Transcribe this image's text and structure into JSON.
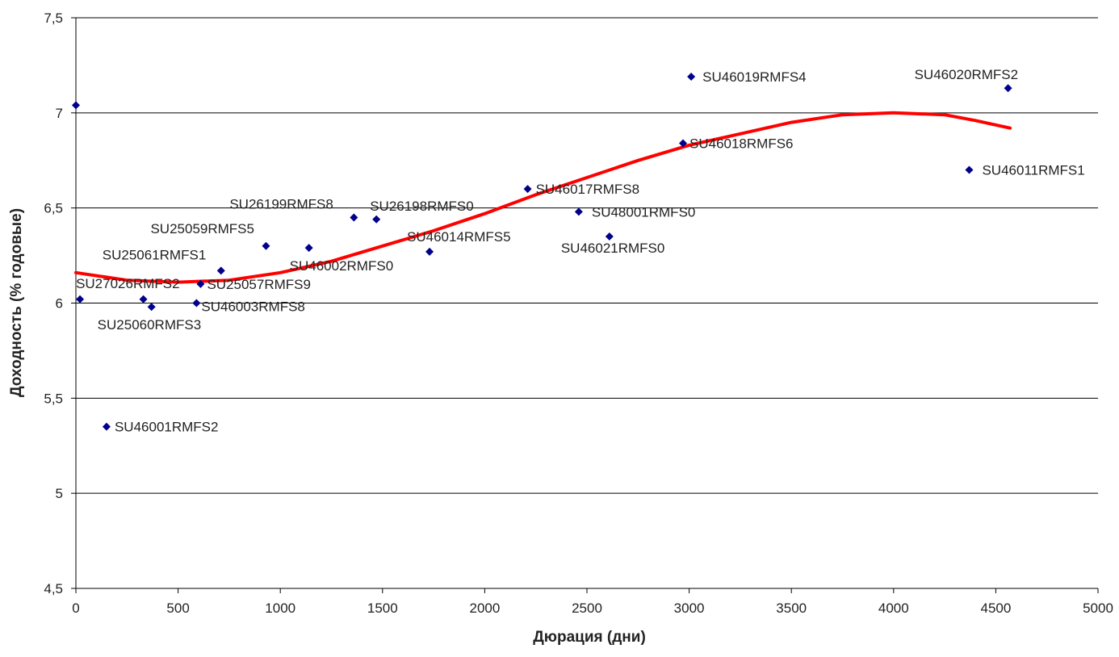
{
  "chart_data": {
    "type": "scatter",
    "title": "",
    "xlabel": "Дюрация (дни)",
    "ylabel": "Доходность (% годовые)",
    "xlim": [
      0,
      5000
    ],
    "ylim": [
      4.5,
      7.5
    ],
    "x_ticks": [
      0,
      500,
      1000,
      1500,
      2000,
      2500,
      3000,
      3500,
      4000,
      4500,
      5000
    ],
    "y_ticks": [
      4.5,
      5,
      5.5,
      6,
      6.5,
      7,
      7.5
    ],
    "y_tick_labels": [
      "4,5",
      "5",
      "5,5",
      "6",
      "6,5",
      "7",
      "7,5"
    ],
    "grid": "horizontal",
    "marker_color": "#00008B",
    "trend_color": "#FF0000",
    "points": [
      {
        "x": 0,
        "y": 7.04,
        "label": ""
      },
      {
        "x": 20,
        "y": 6.02,
        "label": "SU27026RMFS2"
      },
      {
        "x": 150,
        "y": 5.35,
        "label": "SU46001RMFS2"
      },
      {
        "x": 330,
        "y": 6.02,
        "label": ""
      },
      {
        "x": 370,
        "y": 5.98,
        "label": "SU25060RMFS3"
      },
      {
        "x": 590,
        "y": 6.0,
        "label": "SU46003RMFS8"
      },
      {
        "x": 610,
        "y": 6.1,
        "label": "SU25057RMFS9"
      },
      {
        "x": 710,
        "y": 6.17,
        "label": "SU25061RMFS1"
      },
      {
        "x": 930,
        "y": 6.3,
        "label": "SU25059RMFS5"
      },
      {
        "x": 1140,
        "y": 6.29,
        "label": "SU46002RMFS0"
      },
      {
        "x": 1360,
        "y": 6.45,
        "label": "SU26199RMFS8"
      },
      {
        "x": 1470,
        "y": 6.44,
        "label": "SU26198RMFS0"
      },
      {
        "x": 1730,
        "y": 6.27,
        "label": "SU46014RMFS5"
      },
      {
        "x": 2210,
        "y": 6.6,
        "label": "SU46017RMFS8"
      },
      {
        "x": 2460,
        "y": 6.48,
        "label": "SU48001RMFS0"
      },
      {
        "x": 2610,
        "y": 6.35,
        "label": "SU46021RMFS0"
      },
      {
        "x": 2970,
        "y": 6.84,
        "label": "SU46018RMFS6"
      },
      {
        "x": 3010,
        "y": 7.19,
        "label": "SU46019RMFS4"
      },
      {
        "x": 4370,
        "y": 6.7,
        "label": "SU46011RMFS1"
      },
      {
        "x": 4560,
        "y": 7.13,
        "label": "SU46020RMFS2"
      }
    ],
    "trendline": [
      {
        "x": 0,
        "y": 6.16
      },
      {
        "x": 250,
        "y": 6.12
      },
      {
        "x": 500,
        "y": 6.11
      },
      {
        "x": 750,
        "y": 6.12
      },
      {
        "x": 1000,
        "y": 6.16
      },
      {
        "x": 1250,
        "y": 6.22
      },
      {
        "x": 1500,
        "y": 6.3
      },
      {
        "x": 1750,
        "y": 6.38
      },
      {
        "x": 2000,
        "y": 6.47
      },
      {
        "x": 2250,
        "y": 6.57
      },
      {
        "x": 2500,
        "y": 6.66
      },
      {
        "x": 2750,
        "y": 6.75
      },
      {
        "x": 3000,
        "y": 6.83
      },
      {
        "x": 3250,
        "y": 6.89
      },
      {
        "x": 3500,
        "y": 6.95
      },
      {
        "x": 3750,
        "y": 6.99
      },
      {
        "x": 4000,
        "y": 7.0
      },
      {
        "x": 4250,
        "y": 6.99
      },
      {
        "x": 4400,
        "y": 6.96
      },
      {
        "x": 4570,
        "y": 6.92
      }
    ]
  }
}
